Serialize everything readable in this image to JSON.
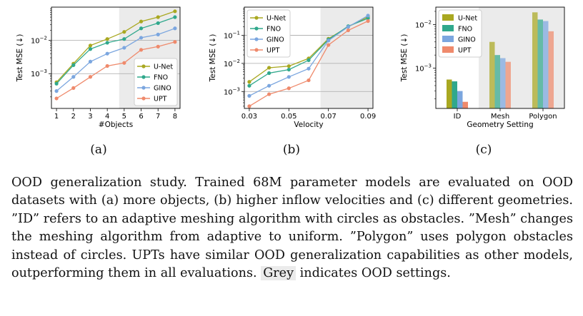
{
  "chart_data": [
    {
      "type": "line",
      "label": "(a)",
      "xlabel": "#Objects",
      "ylabel": "Test MSE (↓)",
      "x": [
        1,
        2,
        3,
        4,
        5,
        6,
        7,
        8
      ],
      "xticks": [
        "1",
        "2",
        "3",
        "4",
        "5",
        "6",
        "7",
        "8"
      ],
      "xlim": [
        0.7,
        8.3
      ],
      "yscale": "log",
      "ylim": [
        9e-05,
        0.1
      ],
      "yticks": [
        {
          "v": 0.001,
          "base": "10",
          "exp": "−3"
        },
        {
          "v": 0.01,
          "base": "10",
          "exp": "−2"
        }
      ],
      "ood_range": [
        4.7,
        8.3
      ],
      "legend": "bottom-right",
      "series": [
        {
          "name": "U-Net",
          "values": [
            0.00055,
            0.002,
            0.007,
            0.011,
            0.018,
            0.037,
            0.05,
            0.075
          ]
        },
        {
          "name": "FNO",
          "values": [
            0.0005,
            0.0018,
            0.0055,
            0.0085,
            0.011,
            0.023,
            0.033,
            0.05
          ]
        },
        {
          "name": "GINO",
          "values": [
            0.0003,
            0.0008,
            0.0023,
            0.004,
            0.006,
            0.012,
            0.015,
            0.023
          ]
        },
        {
          "name": "UPT",
          "values": [
            0.00018,
            0.00037,
            0.0008,
            0.0017,
            0.0021,
            0.0052,
            0.0065,
            0.009
          ]
        }
      ]
    },
    {
      "type": "line",
      "label": "(b)",
      "xlabel": "Velocity",
      "ylabel": "Test MSE (↓)",
      "x": [
        0.03,
        0.04,
        0.05,
        0.06,
        0.07,
        0.08,
        0.09
      ],
      "xticks": [
        "0.03",
        "0.05",
        "0.07",
        "0.09"
      ],
      "xtick_values": [
        0.03,
        0.05,
        0.07,
        0.09
      ],
      "xlim": [
        0.0275,
        0.0925
      ],
      "yscale": "log",
      "ylim": [
        0.00025,
        1.0
      ],
      "yticks": [
        {
          "v": 0.001,
          "base": "10",
          "exp": "−3"
        },
        {
          "v": 0.01,
          "base": "10",
          "exp": "−2"
        },
        {
          "v": 0.1,
          "base": "10",
          "exp": "−1"
        }
      ],
      "ood_range": [
        0.066,
        0.0925
      ],
      "legend": "top-left",
      "series": [
        {
          "name": "U-Net",
          "values": [
            0.0022,
            0.007,
            0.008,
            0.015,
            0.075,
            0.2,
            0.45
          ]
        },
        {
          "name": "FNO",
          "values": [
            0.0016,
            0.0045,
            0.006,
            0.013,
            0.07,
            0.21,
            0.4
          ]
        },
        {
          "name": "GINO",
          "values": [
            0.0007,
            0.0016,
            0.0033,
            0.0065,
            0.065,
            0.2,
            0.5
          ]
        },
        {
          "name": "UPT",
          "values": [
            0.0003,
            0.0008,
            0.0013,
            0.0025,
            0.045,
            0.15,
            0.32
          ]
        }
      ]
    },
    {
      "type": "bar",
      "label": "(c)",
      "xlabel": "Geometry Setting",
      "ylabel": "Test MSE (↓)",
      "categories": [
        "ID",
        "Mesh",
        "Polygon"
      ],
      "yscale": "log",
      "ylim": [
        0.00012,
        0.025
      ],
      "yticks": [
        {
          "v": 0.001,
          "base": "10",
          "exp": "−3"
        },
        {
          "v": 0.01,
          "base": "10",
          "exp": "−2"
        }
      ],
      "ood_categories": [
        "Mesh",
        "Polygon"
      ],
      "legend": "top-left",
      "series": [
        {
          "name": "U-Net",
          "values": [
            0.00055,
            0.004,
            0.019
          ]
        },
        {
          "name": "FNO",
          "values": [
            0.0005,
            0.002,
            0.013
          ]
        },
        {
          "name": "GINO",
          "values": [
            0.0003,
            0.0017,
            0.012
          ]
        },
        {
          "name": "UPT",
          "values": [
            0.00017,
            0.0014,
            0.007
          ]
        }
      ]
    }
  ],
  "colors": {
    "U-Net": "#a9a821",
    "FNO": "#30a88c",
    "GINO": "#7ba6df",
    "UPT": "#ef8a6c",
    "ood_shade": "#ebebeb"
  },
  "caption": {
    "text": "OOD generalization study. Trained 68M parameter models are evaluated on OOD datasets with (a) more objects, (b) higher inflow velocities and (c) different geometries. ”ID” refers to an adaptive meshing algorithm with circles as obstacles. ”Mesh” changes the meshing algorithm from adaptive to uniform. ”Polygon” uses polygon obstacles instead of circles. UPTs have similar OOD generalization capabilities as other models, outperforming them in all evaluations.",
    "highlight": "Grey",
    "tail": "indicates OOD settings."
  }
}
